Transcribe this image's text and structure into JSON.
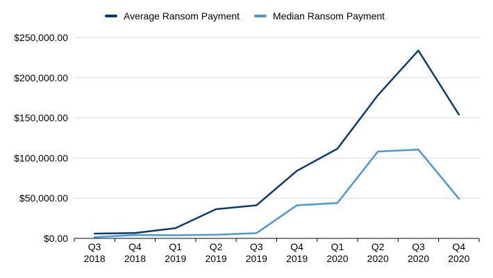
{
  "chart_data": {
    "type": "line",
    "categories": [
      [
        "Q3",
        "2018"
      ],
      [
        "Q4",
        "2018"
      ],
      [
        "Q1",
        "2019"
      ],
      [
        "Q2",
        "2019"
      ],
      [
        "Q3",
        "2019"
      ],
      [
        "Q4",
        "2019"
      ],
      [
        "Q1",
        "2020"
      ],
      [
        "Q2",
        "2020"
      ],
      [
        "Q3",
        "2020"
      ],
      [
        "Q4",
        "2020"
      ]
    ],
    "series": [
      {
        "name": "Average Ransom Payment",
        "color": "#0b3a70",
        "values": [
          5973,
          6733,
          12762,
          36295,
          41198,
          84116,
          111605,
          178254,
          233817,
          154108
        ]
      },
      {
        "name": "Median Ransom Payment",
        "color": "#4a97d6",
        "values": [
          1500,
          4200,
          3900,
          4600,
          6500,
          41179,
          44021,
          108100,
          110532,
          49450
        ]
      }
    ],
    "yticks": [
      "$0.00",
      "$50,000.00",
      "$100,000.00",
      "$150,000.00",
      "$200,000.00",
      "$250,000.00"
    ],
    "ylim": [
      0,
      250000
    ],
    "grid": true,
    "legend_position": "top"
  }
}
